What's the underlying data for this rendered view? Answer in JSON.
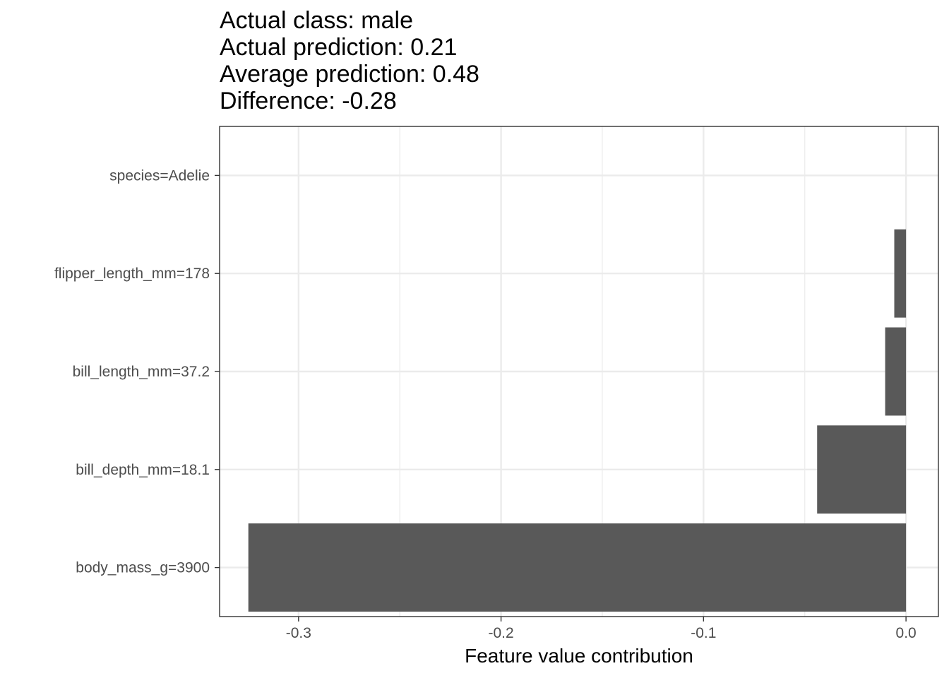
{
  "chart_data": {
    "type": "bar",
    "orientation": "horizontal",
    "title_lines": [
      "Actual class: male",
      "Actual prediction: 0.21",
      "Average prediction: 0.48",
      "Difference: -0.28"
    ],
    "xlabel": "Feature value contribution",
    "ylabel": "",
    "categories": [
      "species=Adelie",
      "flipper_length_mm=178",
      "bill_length_mm=37.2",
      "bill_depth_mm=18.1",
      "body_mass_g=3900"
    ],
    "values": [
      0.0,
      -0.0058,
      -0.0103,
      -0.0439,
      -0.3248
    ],
    "xlim": [
      -0.339,
      0.016
    ],
    "xticks": [
      -0.3,
      -0.2,
      -0.1,
      0.0
    ],
    "xtick_labels": [
      "-0.3",
      "-0.2",
      "-0.1",
      "0.0"
    ],
    "grid": true,
    "bar_color": "#595959",
    "grid_color": "#ebebeb",
    "panel_border_color": "#333333"
  }
}
